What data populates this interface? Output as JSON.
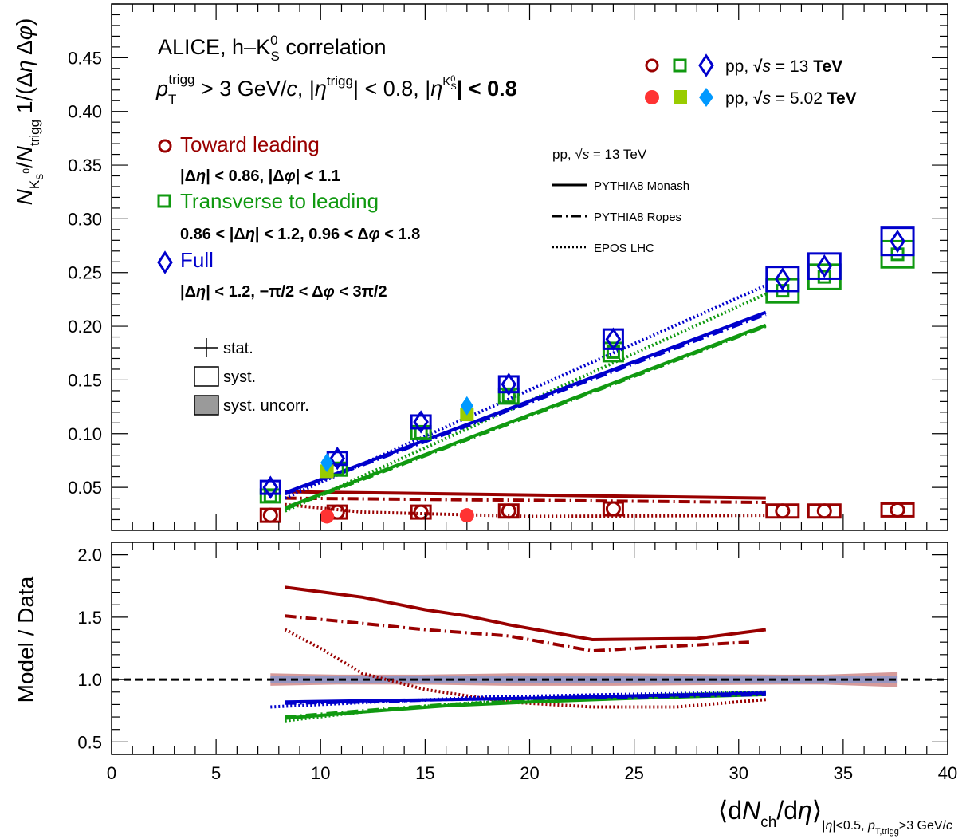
{
  "chart_data": [
    {
      "type": "scatter",
      "panel": "upper",
      "ylabel": "N_{K0S}/N_{trigg} 1/(Δη Δφ)",
      "xlim": [
        0,
        40
      ],
      "ylim": [
        0.01,
        0.5
      ],
      "yticks": [
        0.05,
        0.1,
        0.15,
        0.2,
        0.25,
        0.3,
        0.35,
        0.4,
        0.45
      ],
      "ytick_labels": [
        "0.05",
        "0.10",
        "0.15",
        "0.20",
        "0.25",
        "0.30",
        "0.35",
        "0.40",
        "0.45"
      ],
      "experiment": "ALICE, h–K0S correlation",
      "selection": "p_T^trigg > 3 GeV/c, |η^trigg| < 0.8, |η^K0S| < 0.8",
      "regions": [
        {
          "name": "Toward leading",
          "color": "#990000",
          "cut": "|Δη| < 0.86, |Δφ| < 1.1"
        },
        {
          "name": "Transverse to leading",
          "color": "#109910",
          "cut": "0.86 < |Δη| < 1.2, 0.96 < Δφ < 1.8"
        },
        {
          "name": "Full",
          "color": "#0000cc",
          "cut": "|Δη| < 1.2, −π/2 < Δφ < 3π/2"
        }
      ],
      "data_legend": [
        {
          "label": "pp, √s = 13 TeV",
          "style": "open"
        },
        {
          "label": "pp, √s = 5.02 TeV",
          "style": "filled"
        }
      ],
      "model_legend": {
        "header": "pp, √s = 13 TeV",
        "items": [
          "PYTHIA8 Monash",
          "PYTHIA8 Ropes",
          "EPOS LHC"
        ]
      },
      "uncertainty_legend": [
        "stat.",
        "syst.",
        "syst. uncorr."
      ],
      "series": [
        {
          "name": "Toward leading, 13 TeV",
          "marker": "open-circle",
          "color": "#990000",
          "x": [
            7.6,
            10.8,
            14.8,
            19.0,
            24.0,
            32.1,
            34.1,
            37.6
          ],
          "y": [
            0.024,
            0.027,
            0.027,
            0.028,
            0.03,
            0.028,
            0.028,
            0.029
          ]
        },
        {
          "name": "Transverse to leading, 13 TeV",
          "marker": "open-square",
          "color": "#109910",
          "x": [
            7.6,
            10.8,
            14.8,
            19.0,
            24.0,
            32.1,
            34.1,
            37.6
          ],
          "y": [
            0.042,
            0.067,
            0.101,
            0.135,
            0.176,
            0.233,
            0.246,
            0.267
          ]
        },
        {
          "name": "Full, 13 TeV",
          "marker": "open-diamond",
          "color": "#0000cc",
          "x": [
            7.6,
            10.8,
            14.8,
            19.0,
            24.0,
            32.1,
            34.1,
            37.6
          ],
          "y": [
            0.05,
            0.077,
            0.111,
            0.146,
            0.188,
            0.244,
            0.256,
            0.279
          ]
        },
        {
          "name": "Toward leading, 5.02 TeV",
          "marker": "filled-circle",
          "color": "#ff3333",
          "x": [
            10.3,
            17.0
          ],
          "y": [
            0.023,
            0.024
          ]
        },
        {
          "name": "Transverse to leading, 5.02 TeV",
          "marker": "filled-square",
          "color": "#99cc00",
          "x": [
            10.3,
            17.0
          ],
          "y": [
            0.065,
            0.118
          ]
        },
        {
          "name": "Full, 5.02 TeV",
          "marker": "filled-diamond",
          "color": "#0099ff",
          "x": [
            10.3,
            17.0
          ],
          "y": [
            0.073,
            0.126
          ]
        }
      ],
      "models": [
        {
          "name": "PYTHIA8 Monash",
          "region": "Toward leading",
          "color": "#990000",
          "style": "solid",
          "x": [
            8.3,
            31.3
          ],
          "y": [
            0.046,
            0.04
          ]
        },
        {
          "name": "PYTHIA8 Ropes",
          "region": "Toward leading",
          "color": "#990000",
          "style": "dashdot",
          "x": [
            8.3,
            31.3
          ],
          "y": [
            0.04,
            0.036
          ]
        },
        {
          "name": "EPOS LHC",
          "region": "Toward leading",
          "color": "#990000",
          "style": "dotted",
          "x": [
            8.3,
            12,
            20,
            31.3
          ],
          "y": [
            0.034,
            0.027,
            0.023,
            0.024
          ]
        },
        {
          "name": "PYTHIA8 Monash",
          "region": "Transverse to leading",
          "color": "#109910",
          "style": "solid",
          "x": [
            8.3,
            31.3
          ],
          "y": [
            0.031,
            0.201
          ]
        },
        {
          "name": "PYTHIA8 Ropes",
          "region": "Transverse to leading",
          "color": "#109910",
          "style": "dashdot",
          "x": [
            8.3,
            31.3
          ],
          "y": [
            0.03,
            0.2
          ]
        },
        {
          "name": "EPOS LHC",
          "region": "Transverse to leading",
          "color": "#109910",
          "style": "dotted",
          "x": [
            8.3,
            31.3
          ],
          "y": [
            0.028,
            0.23
          ]
        },
        {
          "name": "PYTHIA8 Monash",
          "region": "Full",
          "color": "#0000cc",
          "style": "solid",
          "x": [
            8.3,
            31.3
          ],
          "y": [
            0.045,
            0.213
          ]
        },
        {
          "name": "PYTHIA8 Ropes",
          "region": "Full",
          "color": "#0000cc",
          "style": "dashdot",
          "x": [
            8.3,
            31.3
          ],
          "y": [
            0.044,
            0.211
          ]
        },
        {
          "name": "EPOS LHC",
          "region": "Full",
          "color": "#0000cc",
          "style": "dotted",
          "x": [
            8.3,
            31.3
          ],
          "y": [
            0.04,
            0.238
          ]
        }
      ]
    },
    {
      "type": "line",
      "panel": "lower",
      "ylabel": "Model / Data",
      "xlabel": "⟨dN_ch/dη⟩_{|η|<0.5, p_T,trigg>3 GeV/c}",
      "xlim": [
        0,
        40
      ],
      "ylim": [
        0.4,
        2.1
      ],
      "xticks": [
        0,
        5,
        10,
        15,
        20,
        25,
        30,
        35,
        40
      ],
      "xtick_labels": [
        "0",
        "5",
        "10",
        "15",
        "20",
        "25",
        "30",
        "35",
        "40"
      ],
      "yticks": [
        0.5,
        1.0,
        1.5,
        2.0
      ],
      "ytick_labels": [
        "0.5",
        "1.0",
        "1.5",
        "2.0"
      ],
      "reference_line": 1.0,
      "series": [
        {
          "name": "PYTHIA8 Monash / Toward",
          "color": "#990000",
          "style": "solid",
          "x": [
            8.3,
            12,
            15,
            17,
            19,
            23,
            28,
            31.3
          ],
          "y": [
            1.74,
            1.66,
            1.56,
            1.51,
            1.44,
            1.32,
            1.33,
            1.4
          ]
        },
        {
          "name": "PYTHIA8 Ropes / Toward",
          "color": "#990000",
          "style": "dashdot",
          "x": [
            8.3,
            12,
            15,
            19,
            23,
            26,
            30.5
          ],
          "y": [
            1.51,
            1.45,
            1.4,
            1.35,
            1.23,
            1.26,
            1.3
          ]
        },
        {
          "name": "EPOS LHC / Toward",
          "color": "#990000",
          "style": "dotted",
          "x": [
            8.3,
            10,
            12,
            15,
            19,
            23,
            27,
            31.3
          ],
          "y": [
            1.4,
            1.25,
            1.05,
            0.92,
            0.82,
            0.78,
            0.78,
            0.84
          ]
        },
        {
          "name": "PYTHIA8 Monash / Transverse",
          "color": "#109910",
          "style": "solid",
          "x": [
            8.3,
            12,
            16,
            20,
            25,
            31.3
          ],
          "y": [
            0.69,
            0.74,
            0.79,
            0.82,
            0.85,
            0.88
          ]
        },
        {
          "name": "PYTHIA8 Ropes / Transverse",
          "color": "#109910",
          "style": "dashdot",
          "x": [
            8.3,
            12,
            16,
            20,
            25,
            31.3
          ],
          "y": [
            0.7,
            0.75,
            0.8,
            0.83,
            0.86,
            0.89
          ]
        },
        {
          "name": "EPOS LHC / Transverse",
          "color": "#109910",
          "style": "dotted",
          "x": [
            8.3,
            12,
            16,
            20,
            25,
            31.3
          ],
          "y": [
            0.67,
            0.74,
            0.8,
            0.84,
            0.87,
            0.9
          ]
        },
        {
          "name": "PYTHIA8 Monash / Full",
          "color": "#0000cc",
          "style": "solid",
          "x": [
            8.3,
            12,
            16,
            20,
            25,
            31.3
          ],
          "y": [
            0.82,
            0.83,
            0.84,
            0.85,
            0.87,
            0.89
          ]
        },
        {
          "name": "PYTHIA8 Ropes / Full",
          "color": "#0000cc",
          "style": "dashdot",
          "x": [
            8.3,
            12,
            16,
            20,
            25,
            31.3
          ],
          "y": [
            0.81,
            0.82,
            0.84,
            0.85,
            0.86,
            0.88
          ]
        },
        {
          "name": "EPOS LHC / Full",
          "color": "#0000cc",
          "style": "dotted",
          "x": [
            7.6,
            10,
            14,
            18,
            24,
            31.3
          ],
          "y": [
            0.78,
            0.8,
            0.83,
            0.86,
            0.88,
            0.9
          ]
        }
      ],
      "uncertainty_band": {
        "x": [
          7.6,
          10.8,
          14.8,
          19.0,
          24.0,
          32.1,
          34.1,
          37.6
        ],
        "toward_half_width": [
          0.05,
          0.04,
          0.04,
          0.05,
          0.05,
          0.04,
          0.04,
          0.06
        ],
        "full_half_width": [
          0.03,
          0.03,
          0.03,
          0.03,
          0.03,
          0.03,
          0.03,
          0.03
        ]
      }
    }
  ]
}
